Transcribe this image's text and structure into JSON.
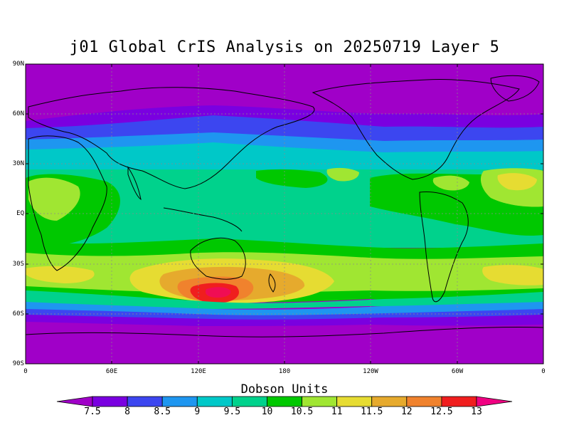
{
  "title": "j01 Global CrIS Analysis on 20250719 Layer 5",
  "lat_labels": [
    "90N",
    "60N",
    "30N",
    "EQ",
    "30S",
    "60S",
    "90S"
  ],
  "lon_labels": [
    "0",
    "60E",
    "120E",
    "180",
    "120W",
    "60W",
    "0"
  ],
  "colorbar": {
    "title": "Dobson Units",
    "ticks": [
      "7.5",
      "8",
      "8.5",
      "9",
      "9.5",
      "10",
      "10.5",
      "11",
      "11.5",
      "12",
      "12.5",
      "13"
    ],
    "colors": [
      "#a000c8",
      "#7a00e0",
      "#3c46f0",
      "#1e96f0",
      "#00c8c8",
      "#00d28c",
      "#00c800",
      "#a0e632",
      "#e6dc32",
      "#e6aa2d",
      "#f0822d",
      "#f01e1e",
      "#f00082"
    ]
  },
  "field_colors": {
    "very_low": "#a000c8",
    "low": "#7a00e0",
    "blue": "#3c46f0",
    "lightblue": "#1e96f0",
    "cyan": "#00c8c8",
    "seagreen": "#00d28c",
    "green": "#00c800",
    "lime": "#a0e632",
    "yellow": "#e6dc32",
    "orange1": "#e6aa2d",
    "orange2": "#f0822d",
    "red": "#f01e1e"
  }
}
